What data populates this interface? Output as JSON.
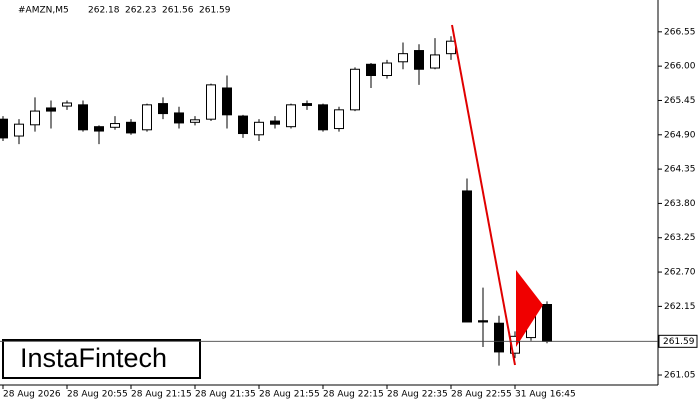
{
  "chart_data": {
    "type": "candlestick",
    "header": {
      "symbol": "#AMZN,M5",
      "open": 262.18,
      "high": 262.23,
      "low": 261.56,
      "close": 261.59
    },
    "logo": "InstaFintech",
    "categories": [
      "28 Aug 2026",
      null,
      null,
      null,
      "28 Aug 20:55",
      null,
      null,
      null,
      "28 Aug 21:15",
      null,
      null,
      null,
      "28 Aug 21:35",
      null,
      null,
      null,
      "28 Aug 21:55",
      null,
      null,
      null,
      "28 Aug 22:15",
      null,
      null,
      null,
      "28 Aug 22:35",
      null,
      null,
      null,
      "28 Aug 22:55",
      null,
      null,
      null,
      "31 Aug 16:45",
      null,
      null
    ],
    "open": [
      265.15,
      264.88,
      265.06,
      265.33,
      265.36,
      265.38,
      265.03,
      265.02,
      265.1,
      264.98,
      265.4,
      265.25,
      265.1,
      265.15,
      265.65,
      265.2,
      264.9,
      265.12,
      265.03,
      265.4,
      265.38,
      265.0,
      265.3,
      266.03,
      265.85,
      266.07,
      266.25,
      265.97,
      266.2,
      264.0,
      261.92,
      261.88,
      261.4,
      261.65,
      262.18
    ],
    "high": [
      265.2,
      265.15,
      265.5,
      265.45,
      265.45,
      265.45,
      265.05,
      265.2,
      265.15,
      265.4,
      265.5,
      265.35,
      265.2,
      265.72,
      265.85,
      265.22,
      265.15,
      265.2,
      265.4,
      265.45,
      265.4,
      265.35,
      265.98,
      266.05,
      266.1,
      266.38,
      266.35,
      266.45,
      266.48,
      264.2,
      262.45,
      262.0,
      261.75,
      262.2,
      262.23
    ],
    "low": [
      264.8,
      264.75,
      264.95,
      265.0,
      265.3,
      264.95,
      264.75,
      264.98,
      264.9,
      264.95,
      265.15,
      265.0,
      265.05,
      265.12,
      265.0,
      264.85,
      264.8,
      265.0,
      265.0,
      265.3,
      264.95,
      264.95,
      265.28,
      265.65,
      265.8,
      265.95,
      265.7,
      265.95,
      266.1,
      261.9,
      261.5,
      261.2,
      261.32,
      261.6,
      261.56
    ],
    "close": [
      264.85,
      265.07,
      265.28,
      265.28,
      265.41,
      264.98,
      264.96,
      265.08,
      264.93,
      265.38,
      265.24,
      265.09,
      265.14,
      265.7,
      265.22,
      264.92,
      265.1,
      265.07,
      265.38,
      265.37,
      264.98,
      265.3,
      265.95,
      265.85,
      266.05,
      266.2,
      265.95,
      266.18,
      266.4,
      261.9,
      261.9,
      261.42,
      261.67,
      262.15,
      261.59
    ],
    "current_price": 261.59,
    "ylim": [
      260.89,
      266.98
    ],
    "yticks": [
      266.55,
      {
        "value": 266,
        "label": "266.00"
      },
      265.45,
      {
        "value": 264.9,
        "label": "264.90"
      },
      264.35,
      {
        "value": 263.8,
        "label": "263.80"
      },
      263.25,
      {
        "value": 262.7,
        "label": "262.70"
      },
      262.15,
      261.05
    ]
  }
}
